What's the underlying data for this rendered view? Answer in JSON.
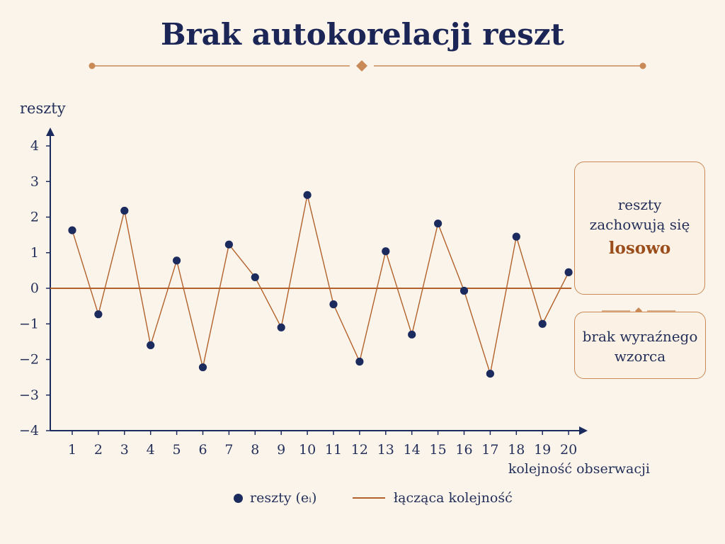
{
  "title": "Brak autokorelacji reszt",
  "chart_data": {
    "type": "line",
    "title": "Brak autokorelacji reszt",
    "ylabel": "reszty",
    "xlabel": "kolejność obserwacji",
    "categories": [
      "1",
      "2",
      "3",
      "4",
      "5",
      "6",
      "7",
      "8",
      "9",
      "10",
      "11",
      "12",
      "13",
      "14",
      "15",
      "16",
      "17",
      "18",
      "19",
      "20"
    ],
    "y_ticks": [
      4,
      3,
      2,
      1,
      0,
      -1,
      -2,
      -3,
      -4
    ],
    "y_tick_labels": [
      "4",
      "3",
      "2",
      "1",
      "0",
      "−1",
      "−2",
      "−3",
      "−4"
    ],
    "ylim": [
      -4,
      4
    ],
    "zero_line": true,
    "series": [
      {
        "name": "reszty (eᵢ)",
        "values": [
          1.63,
          -0.73,
          2.18,
          -1.6,
          0.78,
          -2.22,
          1.23,
          0.31,
          -1.1,
          2.62,
          -0.45,
          -2.06,
          1.04,
          -1.3,
          1.82,
          -0.07,
          -2.4,
          1.45,
          -1.0,
          0.45
        ]
      }
    ],
    "legend": [
      {
        "type": "marker",
        "label": "reszty (eᵢ)"
      },
      {
        "type": "line",
        "label": "łącząca kolejność"
      }
    ],
    "colors": {
      "points": "#1c2b5e",
      "line": "#b2612a",
      "axis": "#1c2b5e",
      "accent": "#c98a58"
    }
  },
  "annotations": {
    "card_top": {
      "line1": "reszty",
      "line2": "zachowują się",
      "line3": "losowo"
    },
    "card_bottom": {
      "line1": "brak wyraźnego",
      "line2": "wzorca"
    }
  }
}
